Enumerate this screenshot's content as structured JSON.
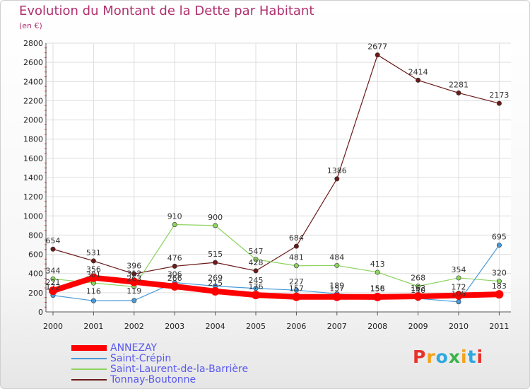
{
  "title": "Evolution du Montant de la Dette par Habitant",
  "unit_label": "(en €)",
  "logo": {
    "letters": [
      "P",
      "r",
      "o",
      "x",
      "i",
      "t",
      "i"
    ],
    "colors": [
      "#e8322b",
      "#f4a21a",
      "#2ea8df",
      "#3cb34a",
      "#f4a21a",
      "#2ea8df",
      "#e8322b"
    ]
  },
  "chart_data": {
    "type": "line",
    "x": [
      "2000",
      "2001",
      "2002",
      "2003",
      "2004",
      "2005",
      "2006",
      "2007",
      "2008",
      "2009",
      "2010",
      "2011"
    ],
    "ylim": [
      0,
      2800
    ],
    "yticks": [
      0,
      200,
      400,
      600,
      800,
      1000,
      1200,
      1400,
      1600,
      1800,
      2000,
      2200,
      2400,
      2600,
      2800
    ],
    "grid": true,
    "legend_position": "bottom-left",
    "series": [
      {
        "name": "ANNEZAY",
        "color": "#ff0000",
        "values": [
          221,
          356,
          312,
          266,
          215,
          176,
          157,
          157,
          156,
          162,
          172,
          183
        ],
        "labels": [
          "221",
          "356",
          "312",
          "266",
          "215",
          "176",
          "157",
          "157",
          "156",
          "162",
          "172",
          "183"
        ]
      },
      {
        "name": "Saint-Crépin",
        "color": "#4a9ad8",
        "values": [
          172,
          116,
          119,
          306,
          269,
          245,
          227,
          189,
          158,
          140,
          105,
          695
        ],
        "labels": [
          "172",
          "116",
          "119",
          "306",
          "269",
          "245",
          "227",
          "189",
          "158",
          "140",
          "105",
          "695"
        ]
      },
      {
        "name": "Saint-Laurent-de-la-Barrière",
        "color": "#8dd35f",
        "values": [
          344,
          301,
          263,
          910,
          900,
          547,
          481,
          484,
          413,
          268,
          354,
          320
        ],
        "labels": [
          "344",
          "301",
          "263",
          "910",
          "900",
          "547",
          "481",
          "484",
          "413",
          "268",
          "354",
          "320"
        ]
      },
      {
        "name": "Tonnay-Boutonne",
        "color": "#6b1a1a",
        "values": [
          654,
          531,
          396,
          476,
          515,
          428,
          684,
          1386,
          2677,
          2414,
          2281,
          2173
        ],
        "labels": [
          "654",
          "531",
          "396",
          "476",
          "515",
          "428",
          "684",
          "1386",
          "2677",
          "2414",
          "2281",
          "2173"
        ]
      }
    ]
  }
}
